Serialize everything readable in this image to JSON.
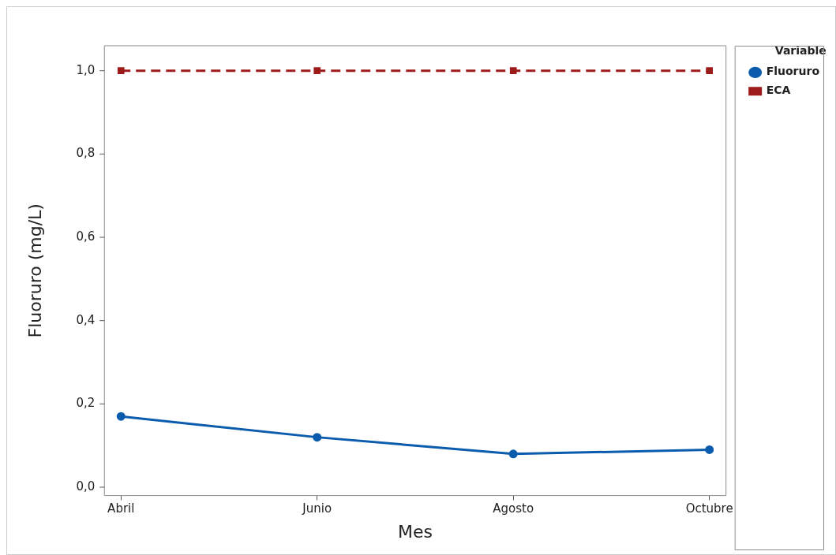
{
  "chart_data": {
    "type": "line",
    "xlabel": "Mes",
    "ylabel": "Fluoruro (mg/L)",
    "legend_title": "Variable",
    "legend": "top right",
    "grid": false,
    "categories": [
      "Abril",
      "Junio",
      "Agosto",
      "Octubre"
    ],
    "ylim": [
      -0.02,
      1.06
    ],
    "yticks": [
      {
        "value": 0,
        "label": "0,0"
      },
      {
        "value": 0.2,
        "label": "0,2"
      },
      {
        "value": 0.4,
        "label": "0,4"
      },
      {
        "value": 0.6,
        "label": "0,6"
      },
      {
        "value": 0.8,
        "label": "0,8"
      },
      {
        "value": 1,
        "label": "1,0"
      }
    ],
    "series": [
      {
        "name": "Fluoruro",
        "color": "#0b5cad",
        "values": [
          0.17,
          0.12,
          0.08,
          0.09
        ],
        "marker": "circle",
        "line_style": "solid"
      },
      {
        "name": "ECA",
        "color": "#9e1b1b",
        "values": [
          1,
          1,
          1,
          1
        ],
        "marker": "square",
        "line_style": "dashed"
      }
    ]
  }
}
